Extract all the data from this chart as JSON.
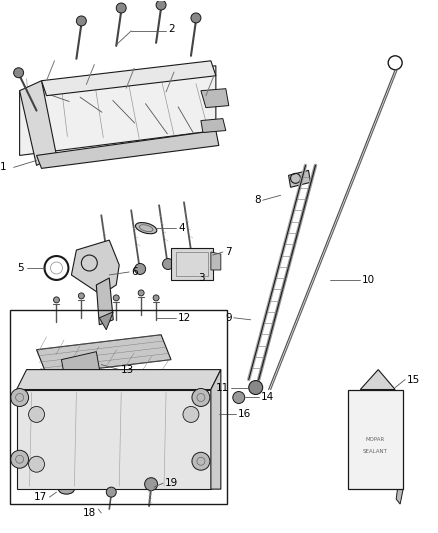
{
  "background_color": "#ffffff",
  "line_color": "#1a1a1a",
  "label_color": "#000000",
  "gray_fill": "#c8c8c8",
  "light_gray": "#e0e0e0",
  "dark_gray": "#888888"
}
